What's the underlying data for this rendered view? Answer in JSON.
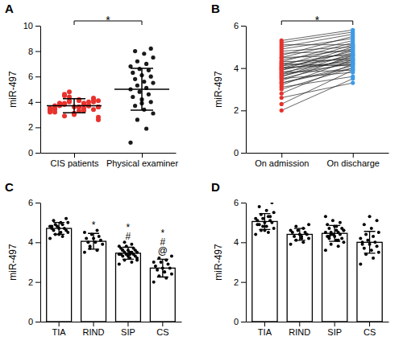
{
  "chart_data": [
    {
      "type": "strip",
      "title": "A",
      "ylabel": "miR-497",
      "categories": [
        "CIS patients",
        "Physical examiner"
      ],
      "ylim": [
        0,
        10
      ],
      "yticks": [
        0,
        2,
        4,
        6,
        8,
        10
      ],
      "annotation": "*",
      "groups": [
        {
          "color": "#e8322d",
          "mean": 3.7,
          "sd": 0.55,
          "values": [
            3.2,
            3.5,
            3.8,
            4.1,
            3.6,
            3.9,
            4.3,
            3.0,
            3.4,
            3.7,
            4.0,
            3.3,
            3.8,
            4.5,
            2.8,
            3.6,
            3.9,
            4.2,
            3.1,
            3.5,
            3.7,
            4.1,
            3.4,
            3.9,
            4.6,
            2.6,
            3.3,
            3.8,
            4.0,
            3.6,
            3.2,
            3.7,
            4.4,
            3.5,
            3.9,
            2.9,
            3.6,
            4.2,
            3.8,
            3.4,
            3.1,
            3.7,
            4.0,
            4.8,
            3.5,
            3.3,
            3.9,
            3.6,
            4.1,
            3.7
          ]
        },
        {
          "color": "#1a1a1a",
          "mean": 5.0,
          "sd": 1.65,
          "values": [
            0.8,
            1.9,
            2.6,
            3.1,
            3.4,
            3.7,
            4.0,
            4.2,
            4.4,
            4.6,
            4.8,
            5.0,
            5.1,
            5.3,
            5.5,
            5.6,
            5.8,
            6.0,
            6.1,
            6.3,
            6.5,
            6.6,
            6.8,
            7.0,
            7.2,
            7.5,
            7.8,
            8.0,
            8.2,
            3.9
          ]
        }
      ]
    },
    {
      "type": "paired",
      "title": "B",
      "ylabel": "miR-497",
      "categories": [
        "On admission",
        "On discharge"
      ],
      "ylim": [
        0,
        6
      ],
      "yticks": [
        0,
        2,
        4,
        6
      ],
      "annotation": "*",
      "groups": [
        {
          "color": "#e8322d",
          "values": [
            2.0,
            2.3,
            2.6,
            2.8,
            3.0,
            3.1,
            3.2,
            3.3,
            3.4,
            3.5,
            3.5,
            3.6,
            3.7,
            3.7,
            3.8,
            3.8,
            3.9,
            3.9,
            4.0,
            4.0,
            4.1,
            4.1,
            4.2,
            4.2,
            4.3,
            4.3,
            4.4,
            4.5,
            4.5,
            4.6,
            4.7,
            4.8,
            4.9,
            5.0,
            5.1,
            5.2,
            5.3,
            3.6,
            4.0,
            3.3
          ]
        },
        {
          "color": "#3d9be9",
          "values": [
            3.5,
            3.9,
            3.3,
            4.2,
            4.0,
            3.6,
            4.4,
            4.1,
            4.6,
            3.8,
            4.3,
            4.7,
            4.2,
            4.9,
            4.4,
            3.9,
            4.6,
            5.0,
            4.3,
            4.8,
            4.5,
            5.1,
            4.1,
            4.7,
            5.2,
            4.4,
            4.9,
            5.3,
            4.6,
            5.5,
            4.8,
            5.0,
            5.4,
            5.6,
            5.1,
            5.7,
            5.8,
            4.5,
            4.2,
            4.0
          ]
        }
      ]
    },
    {
      "type": "bar",
      "title": "C",
      "ylabel": "miR-497",
      "categories": [
        "TIA",
        "RIND",
        "SIP",
        "CS"
      ],
      "ylim": [
        0,
        6
      ],
      "yticks": [
        0,
        2,
        4,
        6
      ],
      "color": "#ffffff",
      "values": [
        4.7,
        4.05,
        3.45,
        2.7
      ],
      "errors": [
        0.3,
        0.4,
        0.3,
        0.45
      ],
      "annotations": [
        [],
        [
          "*"
        ],
        [
          "*",
          "#"
        ],
        [
          "*",
          "#",
          "@"
        ]
      ],
      "points": [
        [
          4.2,
          4.3,
          4.4,
          4.5,
          4.5,
          4.6,
          4.6,
          4.7,
          4.7,
          4.7,
          4.8,
          4.8,
          4.9,
          4.9,
          5.0,
          5.0,
          5.1,
          5.2,
          4.4,
          4.8
        ],
        [
          3.5,
          3.6,
          3.8,
          3.9,
          4.0,
          4.0,
          4.1,
          4.2,
          4.2,
          4.3,
          4.4,
          4.5,
          4.6,
          3.7
        ],
        [
          2.9,
          3.0,
          3.1,
          3.2,
          3.2,
          3.3,
          3.3,
          3.3,
          3.4,
          3.4,
          3.4,
          3.4,
          3.5,
          3.5,
          3.5,
          3.5,
          3.6,
          3.6,
          3.6,
          3.7,
          3.7,
          3.8,
          3.8,
          3.9,
          4.0,
          3.1,
          3.4,
          3.6
        ],
        [
          2.0,
          2.2,
          2.3,
          2.4,
          2.5,
          2.6,
          2.7,
          2.7,
          2.8,
          2.9,
          3.0,
          3.0,
          3.1,
          3.2,
          3.3,
          2.5
        ]
      ]
    },
    {
      "type": "bar",
      "title": "D",
      "ylabel": "miR-497",
      "categories": [
        "TIA",
        "RIND",
        "SIP",
        "CS"
      ],
      "ylim": [
        0,
        6
      ],
      "yticks": [
        0,
        2,
        4,
        6
      ],
      "color": "#ffffff",
      "values": [
        5.05,
        4.4,
        4.45,
        4.0
      ],
      "errors": [
        0.4,
        0.3,
        0.4,
        0.55
      ],
      "points": [
        [
          4.4,
          4.5,
          4.6,
          4.7,
          4.8,
          4.9,
          5.0,
          5.0,
          5.1,
          5.1,
          5.2,
          5.2,
          5.3,
          5.4,
          5.5,
          5.6,
          5.8,
          6.0,
          4.6,
          4.9,
          5.3,
          4.8
        ],
        [
          3.9,
          4.0,
          4.1,
          4.2,
          4.3,
          4.3,
          4.4,
          4.4,
          4.5,
          4.5,
          4.6,
          4.6,
          4.7,
          4.8,
          4.9,
          4.2
        ],
        [
          3.6,
          3.8,
          3.9,
          4.0,
          4.1,
          4.2,
          4.2,
          4.3,
          4.3,
          4.4,
          4.4,
          4.5,
          4.5,
          4.5,
          4.6,
          4.6,
          4.7,
          4.7,
          4.8,
          4.9,
          5.0,
          5.1,
          5.3,
          4.1,
          4.4,
          4.6,
          4.8,
          4.3
        ],
        [
          2.9,
          3.2,
          3.4,
          3.5,
          3.6,
          3.7,
          3.8,
          3.9,
          4.0,
          4.0,
          4.1,
          4.2,
          4.3,
          4.4,
          4.5,
          4.7,
          4.9,
          5.1,
          5.3,
          3.9
        ]
      ]
    }
  ]
}
